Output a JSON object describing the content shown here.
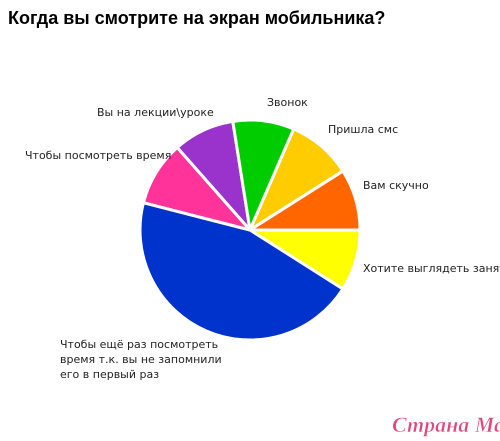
{
  "chart_data": {
    "type": "pie",
    "title": "Когда вы смотрите на экран мобильника?",
    "categories": [
      "Хотите выглядеть занятым",
      [
        "Чтобы ещё раз посмотреть",
        "время т.к. вы не запомнили",
        "его в первый раз"
      ],
      "Чтобы посмотреть время",
      "Вы на лекции\\уроке",
      "Звонок",
      "Пришла смс",
      "Вам скучно"
    ],
    "values": [
      9,
      45,
      9.5,
      9,
      9,
      9.5,
      9
    ],
    "colors": [
      "#ffff00",
      "#0033cc",
      "#ff3399",
      "#9933cc",
      "#00cc00",
      "#ffcc00",
      "#ff6600"
    ]
  },
  "watermark": "Страна Мам"
}
